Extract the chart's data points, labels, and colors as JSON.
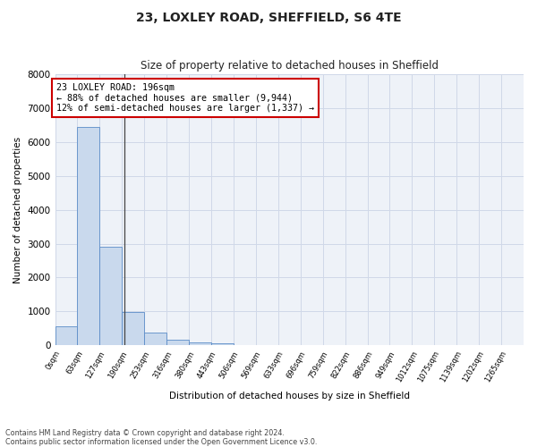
{
  "title": "23, LOXLEY ROAD, SHEFFIELD, S6 4TE",
  "subtitle": "Size of property relative to detached houses in Sheffield",
  "xlabel": "Distribution of detached houses by size in Sheffield",
  "ylabel": "Number of detached properties",
  "footnote1": "Contains HM Land Registry data © Crown copyright and database right 2024.",
  "footnote2": "Contains public sector information licensed under the Open Government Licence v3.0.",
  "categories": [
    "0sqm",
    "63sqm",
    "127sqm",
    "190sqm",
    "253sqm",
    "316sqm",
    "380sqm",
    "443sqm",
    "506sqm",
    "569sqm",
    "633sqm",
    "696sqm",
    "759sqm",
    "822sqm",
    "886sqm",
    "949sqm",
    "1012sqm",
    "1075sqm",
    "1139sqm",
    "1202sqm",
    "1265sqm"
  ],
  "values": [
    550,
    6450,
    2920,
    990,
    370,
    170,
    90,
    60,
    0,
    0,
    0,
    0,
    0,
    0,
    0,
    0,
    0,
    0,
    0,
    0,
    0
  ],
  "bar_color_light": "#c9d9ed",
  "bar_edge_color": "#5b8cc8",
  "property_sqm": 196,
  "annotation_title": "23 LOXLEY ROAD: 196sqm",
  "annotation_line1": "← 88% of detached houses are smaller (9,944)",
  "annotation_line2": "12% of semi-detached houses are larger (1,337) →",
  "annotation_box_color": "#ffffff",
  "annotation_box_edge": "#cc0000",
  "ylim": [
    0,
    8000
  ],
  "yticks": [
    0,
    1000,
    2000,
    3000,
    4000,
    5000,
    6000,
    7000,
    8000
  ],
  "grid_color": "#d0d8e8",
  "bg_color": "#ffffff",
  "plot_bg_color": "#eef2f8",
  "bin_width": 63,
  "n_bins": 21
}
